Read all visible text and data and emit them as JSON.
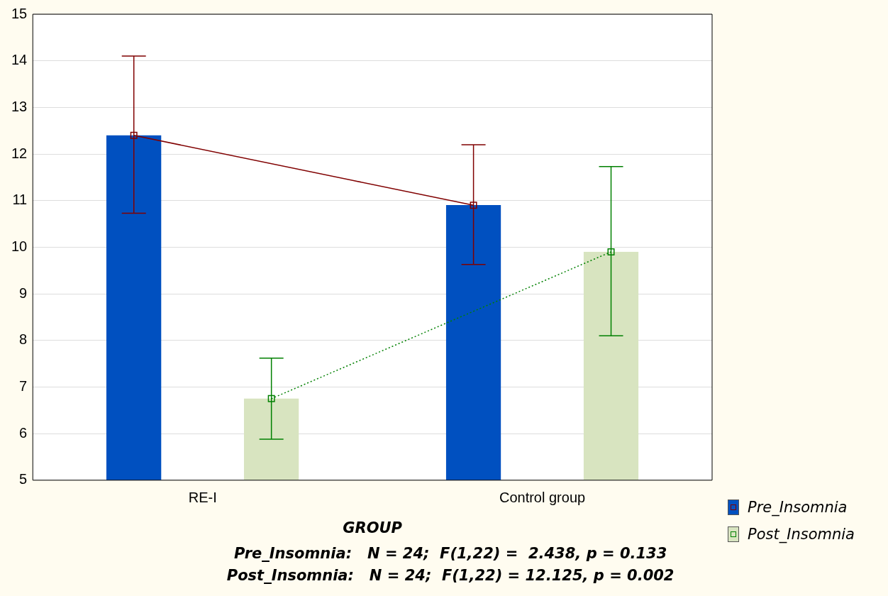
{
  "chart_data": {
    "type": "bar",
    "xlabel": "GROUP",
    "categories": [
      "RE-I",
      "Control group"
    ],
    "series": [
      {
        "name": "Pre_Insomnia",
        "color": "#0050c0",
        "values": [
          12.4,
          10.9
        ]
      },
      {
        "name": "Post_Insomnia",
        "color": "#d8e4c0",
        "values": [
          6.75,
          9.9
        ]
      },
      {
        "type": "line",
        "color": "#800000",
        "values": [
          12.4,
          10.9
        ],
        "errors": [
          [
            10.73,
            14.1
          ],
          [
            9.63,
            12.2
          ]
        ],
        "marker": "square",
        "line_style": "solid"
      },
      {
        "type": "line",
        "color": "#008000",
        "values": [
          6.75,
          9.9
        ],
        "errors": [
          [
            5.88,
            7.62
          ],
          [
            8.1,
            11.73
          ]
        ],
        "marker": "square",
        "line_style": "dotted"
      }
    ],
    "ylim": [
      5,
      15
    ],
    "yticks": [
      5,
      6,
      7,
      8,
      9,
      10,
      11,
      12,
      13,
      14,
      15
    ],
    "grid": "y",
    "legend": "right",
    "annotations": [
      "Pre_Insomnia:   N = 24;  F(1,22) =  2.438, p = 0.133",
      "Post_Insomnia:   N = 24;  F(1,22) = 12.125, p = 0.002"
    ]
  }
}
